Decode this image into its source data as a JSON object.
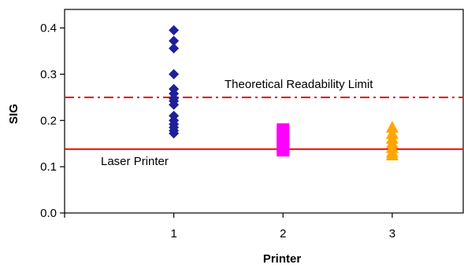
{
  "chart_data": {
    "type": "scatter",
    "xlabel": "Printer",
    "ylabel": "SIG",
    "xlim": [
      0,
      3.65
    ],
    "ylim": [
      0,
      0.44
    ],
    "x_ticks": [
      "1",
      "2",
      "3"
    ],
    "y_ticks": [
      "0.0",
      "0.1",
      "0.2",
      "0.3",
      "0.4"
    ],
    "grid": false,
    "series": [
      {
        "x": 1,
        "marker": "diamond",
        "color": "#1f1f99",
        "values": [
          0.395,
          0.372,
          0.356,
          0.3,
          0.268,
          0.258,
          0.248,
          0.242,
          0.234,
          0.21,
          0.2,
          0.192,
          0.185,
          0.178,
          0.172
        ]
      },
      {
        "x": 2,
        "marker": "square",
        "color": "#ff00ff",
        "values": [
          0.182,
          0.172,
          0.164,
          0.156,
          0.148,
          0.14,
          0.134
        ]
      },
      {
        "x": 3,
        "marker": "triangle",
        "color": "#ffa500",
        "values": [
          0.184,
          0.17,
          0.16,
          0.15,
          0.14,
          0.13,
          0.124
        ]
      }
    ],
    "reference_lines": [
      {
        "y": 0.25,
        "label": "Theoretical Readability Limit",
        "color": "#e31414",
        "style": "dash-dot"
      },
      {
        "y": 0.138,
        "label": "Laser Printer",
        "color": "#ff0000",
        "style": "solid"
      }
    ]
  }
}
